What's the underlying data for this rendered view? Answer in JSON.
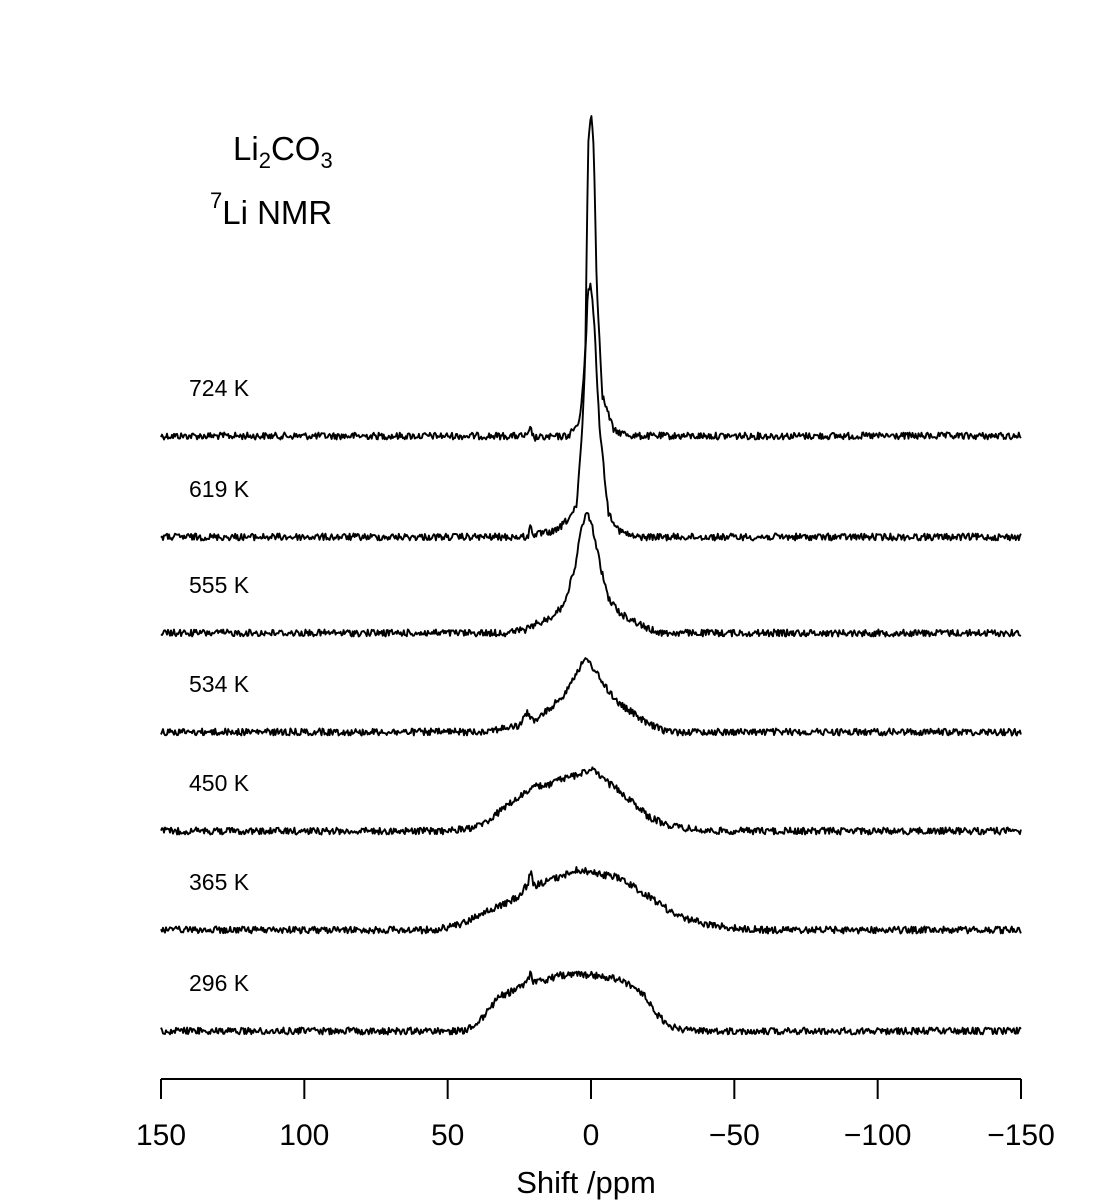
{
  "chart_data": {
    "type": "line",
    "title": {
      "compound_base": "Li",
      "compound_sub1": "2",
      "compound_mid": "CO",
      "compound_sub2": "3",
      "nucleus_sup": "7",
      "nucleus_text": "Li NMR"
    },
    "xlabel": "Shift /ppm",
    "xlim": [
      150,
      -150
    ],
    "xticks": [
      150,
      100,
      50,
      0,
      -50,
      -100,
      -150
    ],
    "xtick_labels": [
      "150",
      "100",
      "50",
      "0",
      "−50",
      "−100",
      "−150"
    ],
    "stacked": true,
    "y_axis_shown": false,
    "series": [
      {
        "name": "724 K",
        "profile": [
          [
            150,
            0
          ],
          [
            30,
            0
          ],
          [
            22,
            0
          ],
          [
            21,
            8
          ],
          [
            20,
            -2
          ],
          [
            8,
            0
          ],
          [
            4,
            14
          ],
          [
            2,
            80
          ],
          [
            1,
            290
          ],
          [
            0,
            325
          ],
          [
            -1,
            290
          ],
          [
            -2,
            150
          ],
          [
            -4,
            40
          ],
          [
            -8,
            5
          ],
          [
            -15,
            0
          ],
          [
            -150,
            0
          ]
        ]
      },
      {
        "name": "619 K",
        "profile": [
          [
            150,
            0
          ],
          [
            30,
            0
          ],
          [
            22,
            0
          ],
          [
            21,
            12
          ],
          [
            20,
            2
          ],
          [
            12,
            6
          ],
          [
            8,
            18
          ],
          [
            5,
            30
          ],
          [
            3,
            110
          ],
          [
            1,
            250
          ],
          [
            0,
            252
          ],
          [
            -1,
            220
          ],
          [
            -3,
            110
          ],
          [
            -6,
            25
          ],
          [
            -10,
            6
          ],
          [
            -15,
            0
          ],
          [
            -150,
            0
          ]
        ]
      },
      {
        "name": "555 K",
        "profile": [
          [
            150,
            0
          ],
          [
            30,
            0
          ],
          [
            22,
            4
          ],
          [
            20,
            8
          ],
          [
            15,
            14
          ],
          [
            10,
            26
          ],
          [
            6,
            60
          ],
          [
            3,
            110
          ],
          [
            1,
            120
          ],
          [
            -1,
            100
          ],
          [
            -3,
            70
          ],
          [
            -6,
            35
          ],
          [
            -10,
            20
          ],
          [
            -15,
            12
          ],
          [
            -20,
            4
          ],
          [
            -25,
            0
          ],
          [
            -150,
            0
          ]
        ]
      },
      {
        "name": "534 K",
        "profile": [
          [
            150,
            0
          ],
          [
            40,
            0
          ],
          [
            25,
            6
          ],
          [
            22,
            20
          ],
          [
            20,
            10
          ],
          [
            15,
            22
          ],
          [
            10,
            35
          ],
          [
            5,
            60
          ],
          [
            2,
            72
          ],
          [
            0,
            68
          ],
          [
            -5,
            45
          ],
          [
            -10,
            28
          ],
          [
            -15,
            18
          ],
          [
            -20,
            8
          ],
          [
            -25,
            2
          ],
          [
            -30,
            0
          ],
          [
            -150,
            0
          ]
        ]
      },
      {
        "name": "450 K",
        "profile": [
          [
            150,
            0
          ],
          [
            50,
            0
          ],
          [
            40,
            4
          ],
          [
            35,
            12
          ],
          [
            30,
            24
          ],
          [
            25,
            34
          ],
          [
            20,
            44
          ],
          [
            15,
            46
          ],
          [
            10,
            52
          ],
          [
            5,
            56
          ],
          [
            0,
            62
          ],
          [
            -5,
            50
          ],
          [
            -10,
            40
          ],
          [
            -15,
            28
          ],
          [
            -20,
            14
          ],
          [
            -25,
            8
          ],
          [
            -30,
            4
          ],
          [
            -40,
            0
          ],
          [
            -150,
            0
          ]
        ]
      },
      {
        "name": "365 K",
        "profile": [
          [
            150,
            0
          ],
          [
            55,
            0
          ],
          [
            45,
            6
          ],
          [
            40,
            14
          ],
          [
            30,
            26
          ],
          [
            25,
            34
          ],
          [
            22,
            46
          ],
          [
            21,
            60
          ],
          [
            20,
            44
          ],
          [
            10,
            54
          ],
          [
            5,
            60
          ],
          [
            0,
            58
          ],
          [
            -10,
            52
          ],
          [
            -20,
            34
          ],
          [
            -30,
            14
          ],
          [
            -40,
            6
          ],
          [
            -50,
            2
          ],
          [
            -60,
            0
          ],
          [
            -150,
            0
          ]
        ]
      },
      {
        "name": "296 K",
        "profile": [
          [
            150,
            0
          ],
          [
            45,
            0
          ],
          [
            40,
            6
          ],
          [
            36,
            20
          ],
          [
            32,
            34
          ],
          [
            26,
            42
          ],
          [
            22,
            50
          ],
          [
            21,
            58
          ],
          [
            20,
            48
          ],
          [
            10,
            56
          ],
          [
            0,
            56
          ],
          [
            -10,
            52
          ],
          [
            -15,
            44
          ],
          [
            -18,
            38
          ],
          [
            -22,
            20
          ],
          [
            -26,
            8
          ],
          [
            -30,
            2
          ],
          [
            -35,
            0
          ],
          [
            -150,
            0
          ]
        ]
      }
    ]
  }
}
